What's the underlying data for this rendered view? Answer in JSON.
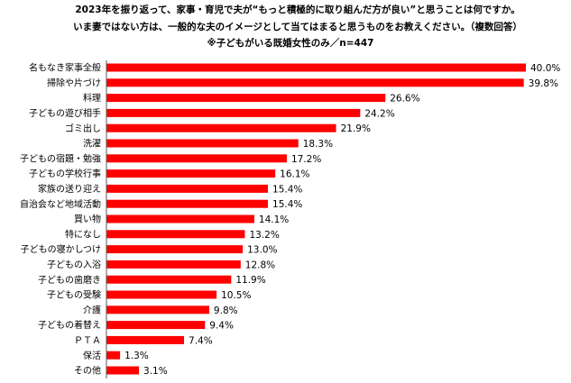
{
  "chart_data": {
    "type": "bar",
    "orientation": "horizontal",
    "title": "2023年を振り返って、家事・育児で夫が“もっと積極的に取り組んだ方が良い”と思うことは何ですか。",
    "subtitle": "いま妻ではない方は、一般的な夫のイメージとして当てはまると思うものをお教えください。（複数回答）",
    "note": "※子どもがいる既婚女性のみ／n=447",
    "categories": [
      "名もなき家事全般",
      "掃除や片づけ",
      "料理",
      "子どもの遊び相手",
      "ゴミ出し",
      "洗濯",
      "子どもの宿題・勉強",
      "子どもの学校行事",
      "家族の送り迎え",
      "自治会など地域活動",
      "買い物",
      "特になし",
      "子どもの寝かしつけ",
      "子どもの入浴",
      "子どもの歯磨き",
      "子どもの受験",
      "介護",
      "子どもの着替え",
      "ＰＴＡ",
      "保活",
      "その他"
    ],
    "values": [
      40.0,
      39.8,
      26.6,
      24.2,
      21.9,
      18.3,
      17.2,
      16.1,
      15.4,
      15.4,
      14.1,
      13.2,
      13.0,
      12.8,
      11.9,
      10.5,
      9.8,
      9.4,
      7.4,
      1.3,
      3.1
    ],
    "data_labels": [
      "40.0%",
      "39.8%",
      "26.6%",
      "24.2%",
      "21.9%",
      "18.3%",
      "17.2%",
      "16.1%",
      "15.4%",
      "15.4%",
      "14.1%",
      "13.2%",
      "13.0%",
      "12.8%",
      "11.9%",
      "10.5%",
      "9.8%",
      "9.4%",
      "7.4%",
      "1.3%",
      "3.1%"
    ],
    "xlim": [
      0,
      40
    ],
    "grid": false,
    "legend": "none",
    "bar_color": "#FF0000"
  }
}
